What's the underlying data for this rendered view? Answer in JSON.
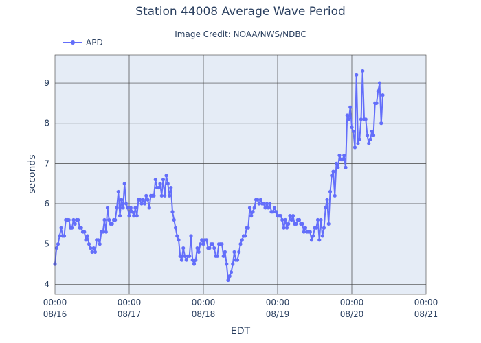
{
  "title": "Station 44008 Average Wave Period",
  "subtitle": "Image Credit: NOAA/NWS/NDBC",
  "chart_data": {
    "type": "line",
    "title": "Station 44008 Average Wave Period",
    "xlabel": "EDT",
    "ylabel": "seconds",
    "xlim_hours": [
      0,
      120
    ],
    "ylim": [
      3.75,
      9.7
    ],
    "yticks": [
      4,
      5,
      6,
      7,
      8,
      9
    ],
    "xticks": [
      {
        "hour": 0,
        "time": "00:00",
        "date": "08/16"
      },
      {
        "hour": 24,
        "time": "00:00",
        "date": "08/17"
      },
      {
        "hour": 48,
        "time": "00:00",
        "date": "08/18"
      },
      {
        "hour": 72,
        "time": "00:00",
        "date": "08/19"
      },
      {
        "hour": 96,
        "time": "00:00",
        "date": "08/20"
      },
      {
        "hour": 120,
        "time": "00:00",
        "date": "08/21"
      }
    ],
    "grid": true,
    "legend_position": "top-left",
    "series": [
      {
        "name": "APD",
        "color": "#636efa",
        "x_hours": [
          0,
          0.5,
          1,
          1.5,
          2,
          2.5,
          3,
          3.5,
          4,
          4.5,
          5,
          5.5,
          6,
          6.5,
          7,
          7.5,
          8,
          8.5,
          9,
          9.5,
          10,
          10.5,
          11,
          11.5,
          12,
          12.5,
          13,
          13.5,
          14,
          14.5,
          15,
          15.5,
          16,
          16.5,
          17,
          17.5,
          18,
          18.5,
          19,
          19.5,
          20,
          20.5,
          21,
          21.5,
          22,
          22.5,
          23,
          23.5,
          24,
          24.5,
          25,
          25.5,
          26,
          26.5,
          27,
          27.5,
          28,
          28.5,
          29,
          29.5,
          30,
          30.5,
          31,
          31.5,
          32,
          32.5,
          33,
          33.5,
          34,
          34.5,
          35,
          35.5,
          36,
          36.5,
          37,
          37.5,
          38,
          38.5,
          39,
          39.5,
          40,
          40.5,
          41,
          41.5,
          42,
          42.5,
          43,
          43.5,
          44,
          44.5,
          45,
          45.5,
          46,
          46.5,
          47,
          47.5,
          48,
          48.5,
          49,
          49.5,
          50,
          50.5,
          51,
          51.5,
          52,
          52.5,
          53,
          53.5,
          54,
          54.5,
          55,
          55.5,
          56,
          56.5,
          57,
          57.5,
          58,
          58.5,
          59,
          59.5,
          60,
          60.5,
          61,
          61.5,
          62,
          62.5,
          63,
          63.5,
          64,
          64.5,
          65,
          65.5,
          66,
          66.5,
          67,
          67.5,
          68,
          68.5,
          69,
          69.5,
          70,
          70.5,
          71,
          71.5,
          72,
          72.5,
          73,
          73.5,
          74,
          74.5,
          75,
          75.5,
          76,
          76.5,
          77,
          77.5,
          78,
          78.5,
          79,
          79.5,
          80,
          80.5,
          81,
          81.5,
          82,
          82.5,
          83,
          83.5,
          84,
          84.5,
          85,
          85.5,
          86,
          86.5,
          87,
          87.5,
          88,
          88.5,
          89,
          89.5,
          90,
          90.5,
          91,
          91.5,
          92,
          92.5,
          93,
          93.5,
          94,
          94.5,
          95,
          95.5,
          96,
          96.5,
          97,
          97.5,
          98,
          98.5,
          99,
          99.5,
          100,
          100.5,
          101,
          101.5,
          102,
          102.5,
          103,
          103.5,
          104,
          104.5,
          105,
          105.5,
          106
        ],
        "values": [
          4.5,
          4.9,
          5.0,
          5.2,
          5.4,
          5.2,
          5.2,
          5.6,
          5.6,
          5.6,
          5.4,
          5.4,
          5.6,
          5.5,
          5.6,
          5.6,
          5.4,
          5.4,
          5.3,
          5.3,
          5.1,
          5.2,
          5.0,
          4.9,
          4.8,
          4.9,
          4.8,
          5.1,
          5.1,
          5.0,
          5.3,
          5.3,
          5.6,
          5.3,
          5.9,
          5.6,
          5.5,
          5.5,
          5.6,
          5.6,
          5.9,
          6.3,
          5.7,
          6.1,
          5.9,
          6.5,
          6.0,
          5.9,
          5.7,
          5.9,
          5.8,
          5.7,
          5.9,
          5.7,
          6.1,
          6.1,
          6.0,
          6.1,
          6.0,
          6.2,
          6.1,
          5.9,
          6.2,
          6.2,
          6.2,
          6.6,
          6.4,
          6.4,
          6.5,
          6.2,
          6.6,
          6.2,
          6.7,
          6.5,
          6.2,
          6.4,
          5.8,
          5.6,
          5.4,
          5.2,
          5.1,
          4.7,
          4.6,
          4.9,
          4.7,
          4.6,
          4.7,
          4.7,
          5.2,
          4.6,
          4.5,
          4.6,
          4.9,
          4.8,
          5.0,
          5.1,
          5.0,
          5.1,
          5.1,
          4.9,
          4.9,
          5.0,
          5.0,
          4.9,
          4.7,
          4.7,
          5.0,
          5.0,
          5.0,
          4.7,
          4.8,
          4.5,
          4.1,
          4.2,
          4.3,
          4.5,
          4.8,
          4.6,
          4.6,
          4.8,
          5.0,
          5.1,
          5.2,
          5.2,
          5.4,
          5.4,
          5.9,
          5.7,
          5.8,
          5.9,
          6.1,
          6.1,
          6.0,
          6.1,
          6.0,
          6.0,
          5.9,
          6.0,
          5.9,
          6.0,
          5.8,
          5.8,
          5.9,
          5.8,
          5.7,
          5.7,
          5.7,
          5.6,
          5.4,
          5.6,
          5.4,
          5.5,
          5.7,
          5.6,
          5.7,
          5.5,
          5.5,
          5.6,
          5.6,
          5.5,
          5.5,
          5.3,
          5.4,
          5.3,
          5.3,
          5.3,
          5.1,
          5.2,
          5.4,
          5.4,
          5.6,
          5.1,
          5.6,
          5.2,
          5.4,
          5.9,
          6.1,
          5.5,
          6.3,
          6.7,
          6.8,
          6.2,
          7.0,
          6.9,
          7.2,
          7.1,
          7.1,
          7.2,
          6.9,
          8.2,
          8.1,
          8.4,
          7.9,
          7.8,
          7.4,
          9.2,
          7.5,
          7.6,
          8.1,
          9.3,
          8.1,
          8.1,
          7.7,
          7.5,
          7.6,
          7.8,
          7.7,
          8.5,
          8.5,
          8.8,
          9.0,
          8.0,
          8.7
        ]
      }
    ]
  }
}
